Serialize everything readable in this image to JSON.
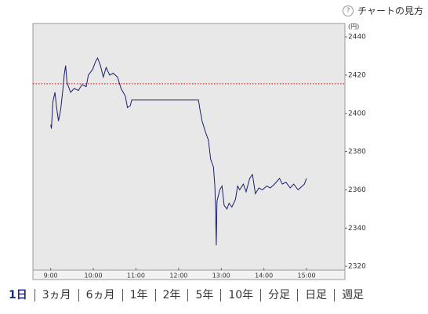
{
  "help_link": "チャートの見方",
  "chart_data": {
    "type": "line",
    "y_unit": "(円)",
    "x": [
      "9:00",
      "9:01",
      "9:03",
      "9:06",
      "9:08",
      "9:11",
      "9:14",
      "9:17",
      "9:19",
      "9:21",
      "9:23",
      "9:28",
      "9:33",
      "9:39",
      "9:44",
      "9:50",
      "9:53",
      "9:59",
      "10:03",
      "10:06",
      "10:10",
      "10:14",
      "10:18",
      "10:23",
      "10:28",
      "10:34",
      "10:39",
      "10:45",
      "10:48",
      "10:52",
      "10:54",
      "12:28",
      "12:30",
      "12:33",
      "12:38",
      "12:42",
      "12:45",
      "12:49",
      "12:51",
      "12:52",
      "12:53",
      "12:54",
      "12:58",
      "13:01",
      "13:04",
      "13:08",
      "13:11",
      "13:15",
      "13:20",
      "13:23",
      "13:26",
      "13:31",
      "13:35",
      "13:40",
      "13:44",
      "13:48",
      "13:53",
      "13:58",
      "14:04",
      "14:09",
      "14:15",
      "14:22",
      "14:26",
      "14:31",
      "14:37",
      "14:42",
      "14:48",
      "14:54",
      "14:57",
      "15:00"
    ],
    "series": [
      {
        "color": "#1a1f6e",
        "values": [
          2394,
          2392,
          2406,
          2411,
          2404,
          2396,
          2402,
          2412,
          2420,
          2425,
          2416,
          2411,
          2413,
          2412,
          2415,
          2414,
          2420,
          2423,
          2427,
          2429,
          2425,
          2419,
          2424,
          2420,
          2421,
          2419,
          2413,
          2409,
          2403,
          2404,
          2407,
          2407,
          2402,
          2396,
          2390,
          2386,
          2376,
          2372,
          2362,
          2350,
          2331,
          2354,
          2360,
          2362,
          2352,
          2350,
          2353,
          2351,
          2355,
          2362,
          2360,
          2363,
          2359,
          2366,
          2368,
          2358,
          2361,
          2360,
          2362,
          2361,
          2363,
          2366,
          2363,
          2364,
          2361,
          2363,
          2360,
          2362,
          2363,
          2366
        ]
      }
    ],
    "xlim": [
      "8:35",
      "15:54"
    ],
    "xticks": [
      "9:00",
      "10:00",
      "11:00",
      "12:00",
      "13:00",
      "14:00",
      "15:00"
    ],
    "ylim": [
      2318,
      2447
    ],
    "yticks": [
      2320,
      2340,
      2360,
      2380,
      2400,
      2420,
      2440
    ],
    "reference_line": {
      "value": 2415.5,
      "color": "#d00000"
    }
  },
  "tabs": [
    "1日",
    "3ヵ月",
    "6ヵ月",
    "1年",
    "2年",
    "5年",
    "10年",
    "分足",
    "日足",
    "週足"
  ],
  "active_tab": 0
}
